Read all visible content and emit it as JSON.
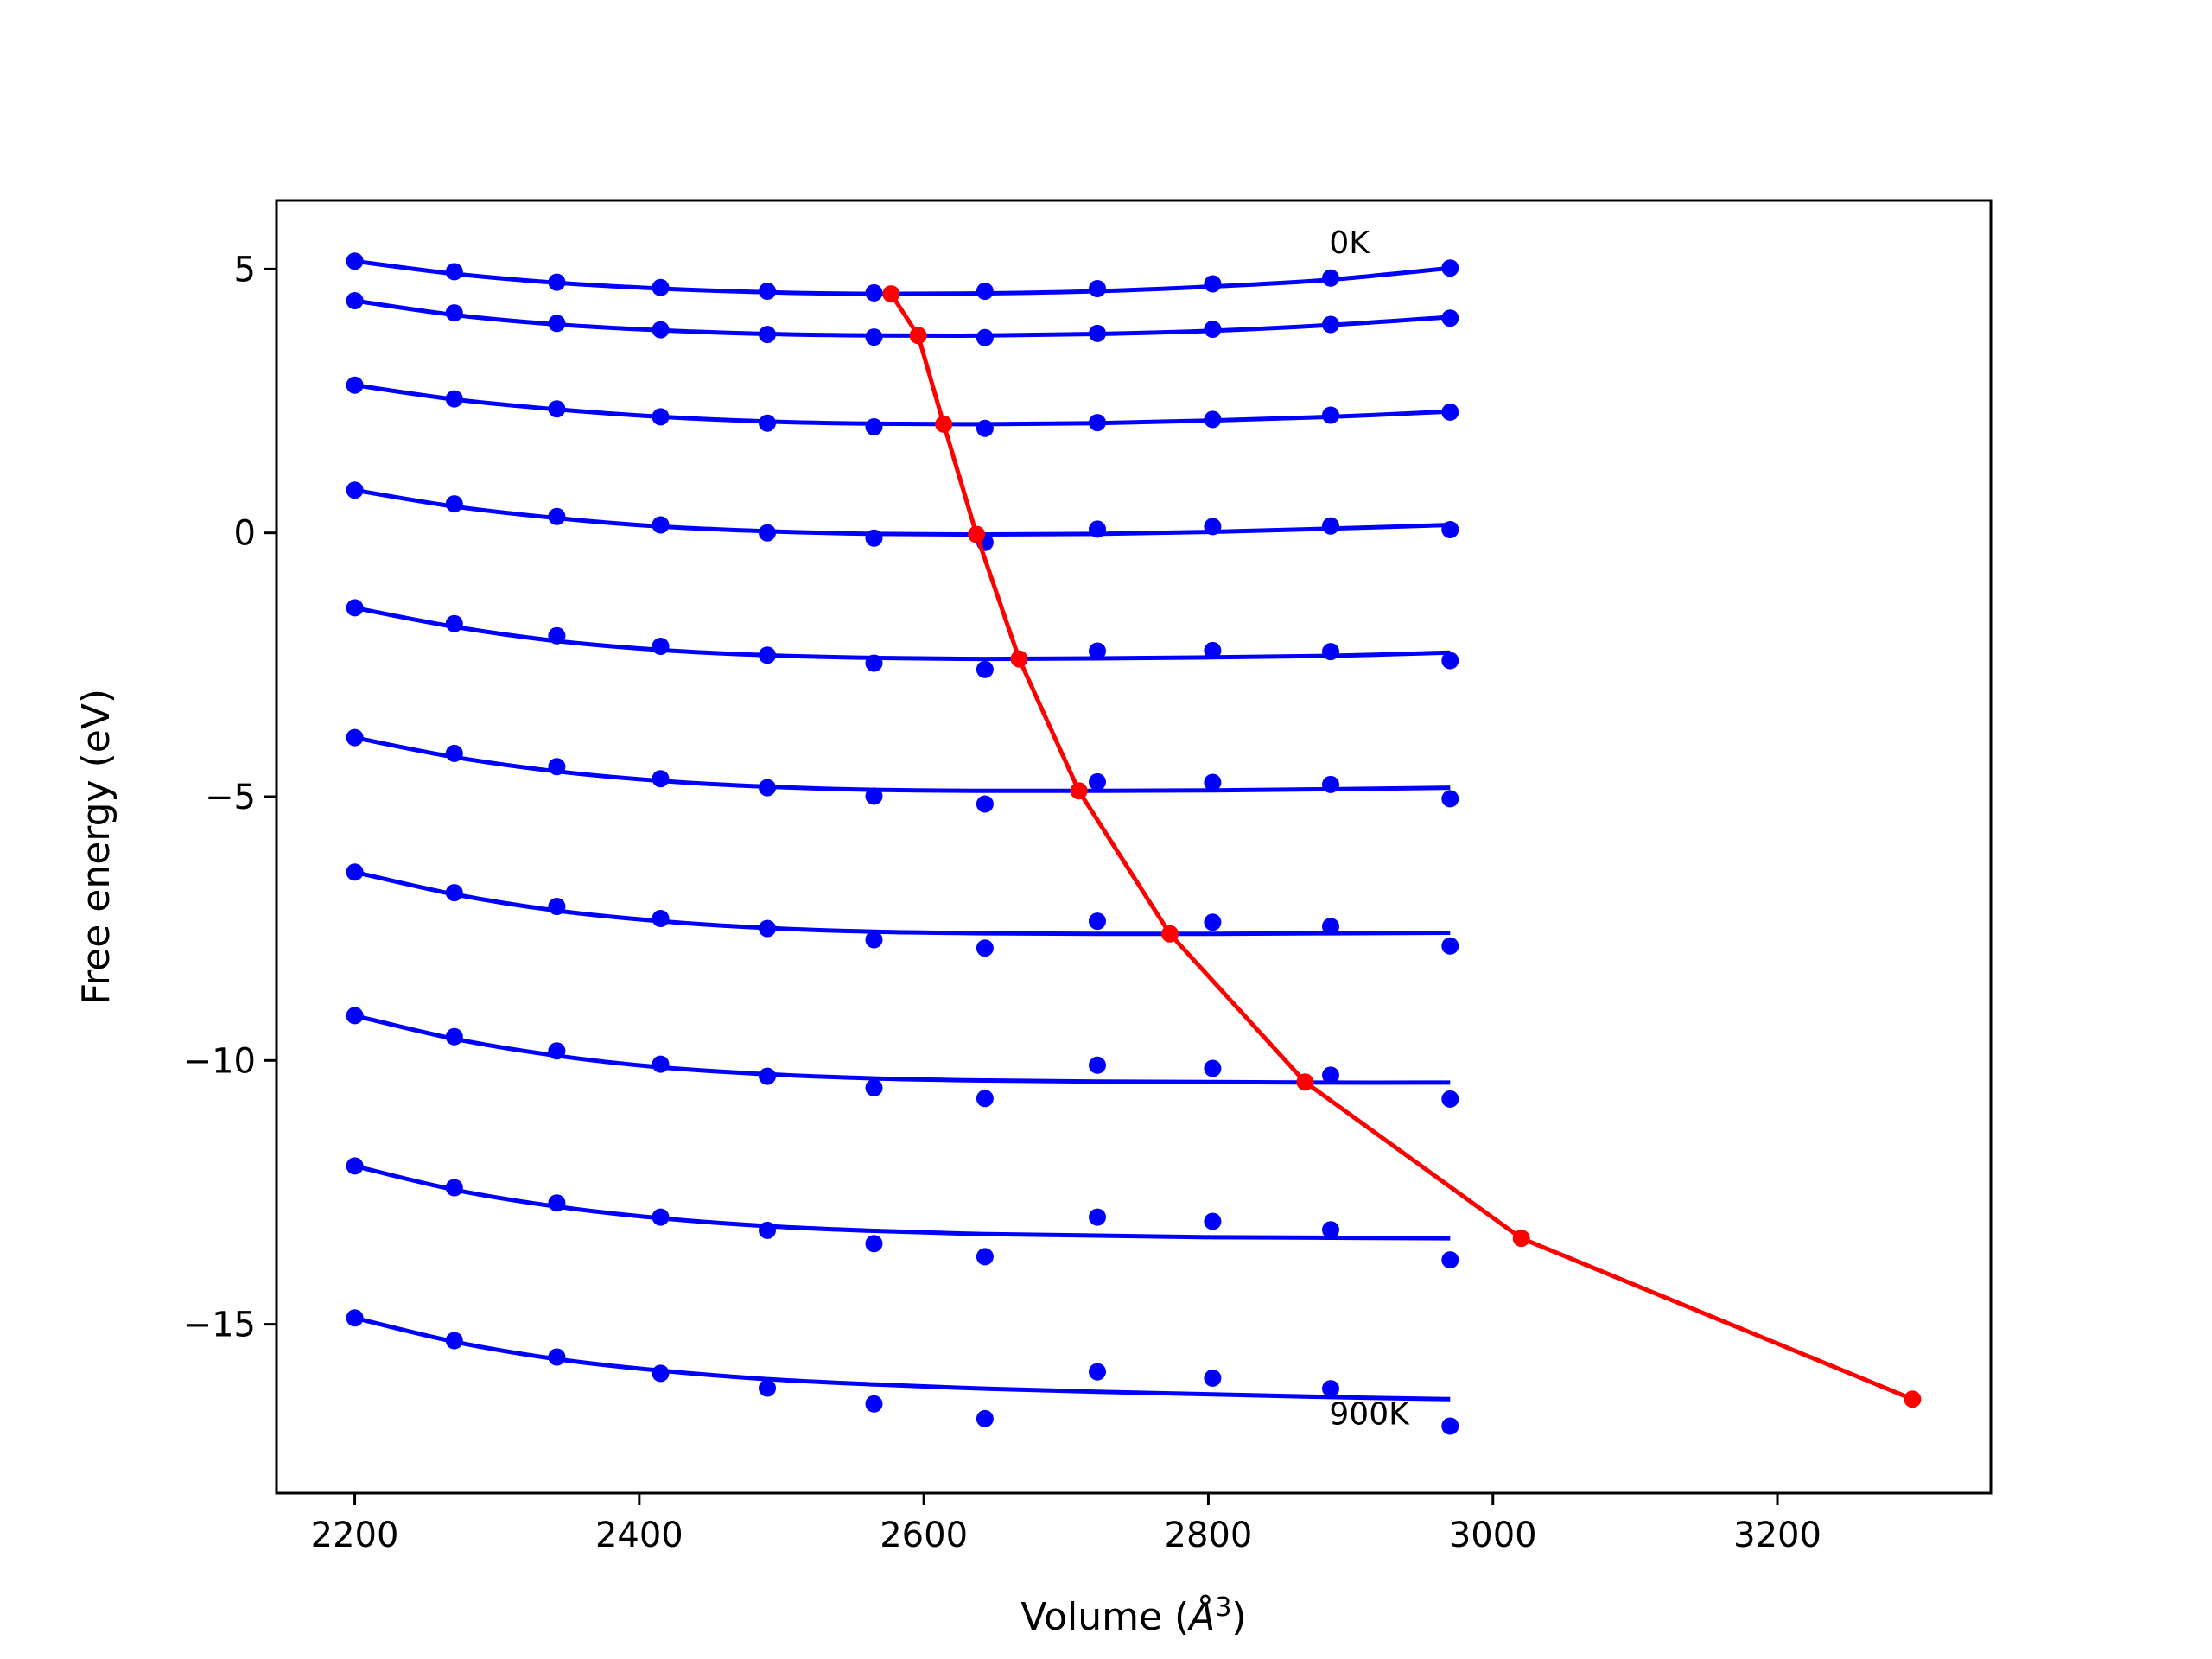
{
  "chart_data": {
    "type": "scatter",
    "title": "",
    "xlabel": "Volume (",
    "xlabel_unit": "Å",
    "xlabel_sup": "3",
    "xlabel_close": ")",
    "ylabel": "Free energy (eV)",
    "xlim": [
      2145,
      3350
    ],
    "ylim": [
      -18.2,
      6.3
    ],
    "xticks": [
      2200,
      2400,
      2600,
      2800,
      3000,
      3200
    ],
    "xtick_labels": [
      "2200",
      "2400",
      "2600",
      "2800",
      "3000",
      "3200"
    ],
    "yticks": [
      5,
      0,
      -5,
      -10,
      -15
    ],
    "ytick_labels": [
      "5",
      "0",
      "−5",
      "−10",
      "−15"
    ],
    "grid": false,
    "colors": {
      "points": "#0000ff",
      "fits": "#0000ff",
      "minima": "#ff0000"
    },
    "annotations": [
      {
        "text": "0K",
        "x": 2885,
        "y": 5.3
      },
      {
        "text": "900K",
        "x": 2885,
        "y": -16.9
      }
    ],
    "volumes": [
      2200,
      2270,
      2342,
      2415,
      2490,
      2565,
      2643,
      2722,
      2803,
      2886,
      2970
    ],
    "isotherms": [
      {
        "points": [
          5.15,
          4.95,
          4.75,
          4.65,
          4.58,
          4.55,
          4.58,
          4.63,
          4.72,
          4.83,
          5.02
        ],
        "fit": [
          5.15,
          4.91,
          4.74,
          4.63,
          4.56,
          4.53,
          4.54,
          4.58,
          4.67,
          4.8,
          5.02
        ]
      },
      {
        "points": [
          4.4,
          4.17,
          3.97,
          3.85,
          3.76,
          3.71,
          3.7,
          3.78,
          3.86,
          3.95,
          4.07
        ],
        "fit": [
          4.4,
          4.13,
          3.95,
          3.84,
          3.77,
          3.74,
          3.74,
          3.77,
          3.83,
          3.94,
          4.09
        ]
      },
      {
        "points": [
          2.8,
          2.54,
          2.35,
          2.2,
          2.08,
          2.01,
          1.98,
          2.09,
          2.15,
          2.23,
          2.29
        ],
        "fit": [
          2.8,
          2.53,
          2.34,
          2.2,
          2.11,
          2.07,
          2.06,
          2.08,
          2.13,
          2.2,
          2.3
        ]
      },
      {
        "points": [
          0.81,
          0.55,
          0.31,
          0.15,
          0.0,
          -0.1,
          -0.18,
          0.07,
          0.12,
          0.13,
          0.06
        ],
        "fit": [
          0.81,
          0.5,
          0.28,
          0.12,
          0.03,
          -0.02,
          -0.03,
          -0.02,
          0.02,
          0.08,
          0.15
        ]
      },
      {
        "points": [
          -1.42,
          -1.72,
          -1.95,
          -2.15,
          -2.32,
          -2.47,
          -2.59,
          -2.24,
          -2.23,
          -2.25,
          -2.42
        ],
        "fit": [
          -1.42,
          -1.78,
          -2.05,
          -2.22,
          -2.32,
          -2.37,
          -2.39,
          -2.38,
          -2.36,
          -2.33,
          -2.27
        ]
      },
      {
        "points": [
          -3.88,
          -4.18,
          -4.43,
          -4.66,
          -4.83,
          -4.99,
          -5.14,
          -4.72,
          -4.73,
          -4.77,
          -5.04
        ],
        "fit": [
          -3.88,
          -4.25,
          -4.52,
          -4.7,
          -4.81,
          -4.87,
          -4.89,
          -4.89,
          -4.88,
          -4.86,
          -4.83
        ]
      },
      {
        "points": [
          -6.43,
          -6.82,
          -7.08,
          -7.31,
          -7.5,
          -7.71,
          -7.87,
          -7.36,
          -7.38,
          -7.46,
          -7.83
        ],
        "fit": [
          -6.43,
          -6.85,
          -7.16,
          -7.36,
          -7.49,
          -7.56,
          -7.59,
          -7.6,
          -7.6,
          -7.59,
          -7.58
        ]
      },
      {
        "points": [
          -9.15,
          -9.55,
          -9.82,
          -10.07,
          -10.3,
          -10.52,
          -10.72,
          -10.09,
          -10.15,
          -10.28,
          -10.73
        ],
        "fit": [
          -9.15,
          -9.59,
          -9.91,
          -10.13,
          -10.26,
          -10.34,
          -10.38,
          -10.4,
          -10.41,
          -10.42,
          -10.42
        ]
      },
      {
        "points": [
          -12.0,
          -12.41,
          -12.7,
          -12.97,
          -13.22,
          -13.47,
          -13.72,
          -12.97,
          -13.05,
          -13.21,
          -13.78
        ],
        "fit": [
          -12.0,
          -12.45,
          -12.77,
          -12.99,
          -13.14,
          -13.23,
          -13.29,
          -13.32,
          -13.35,
          -13.36,
          -13.37
        ]
      },
      {
        "points": [
          -14.88,
          -15.31,
          -15.62,
          -15.93,
          -16.21,
          -16.51,
          -16.79,
          -15.9,
          -16.02,
          -16.22,
          -16.93
        ],
        "fit": [
          -14.88,
          -15.33,
          -15.66,
          -15.88,
          -16.04,
          -16.14,
          -16.22,
          -16.28,
          -16.33,
          -16.38,
          -16.42
        ]
      }
    ],
    "minima_curve": {
      "x": [
        2577,
        2596,
        2614,
        2637,
        2667,
        2709,
        2773,
        2868,
        3020,
        3295
      ],
      "y": [
        4.53,
        3.74,
        2.06,
        -0.03,
        -2.39,
        -4.89,
        -7.6,
        -10.41,
        -13.37,
        -16.42
      ]
    }
  }
}
